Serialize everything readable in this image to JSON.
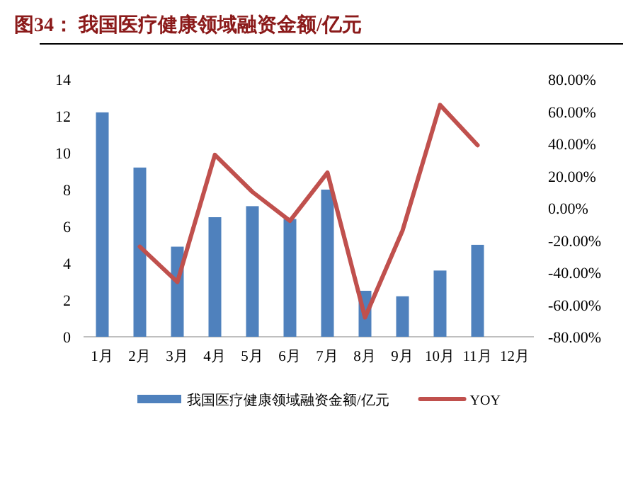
{
  "chart_data": {
    "type": "bar",
    "title": "图34：  我国医疗健康领域融资金额/亿元",
    "categories": [
      "1月",
      "2月",
      "3月",
      "4月",
      "5月",
      "6月",
      "7月",
      "8月",
      "9月",
      "10月",
      "11月",
      "12月"
    ],
    "series": [
      {
        "name": "我国医疗健康领域融资金额/亿元",
        "color": "#4f81bd",
        "values": [
          12.2,
          9.2,
          4.9,
          6.5,
          7.1,
          6.4,
          8.0,
          2.5,
          2.2,
          3.6,
          5.0,
          null
        ]
      },
      {
        "name": "YOY",
        "type": "line",
        "axis": "y2",
        "color": "#c0504d",
        "values": [
          null,
          -24,
          -46,
          33,
          10,
          -8,
          22,
          -68,
          -14,
          64,
          39,
          null
        ]
      }
    ],
    "ylim": [
      0,
      14
    ],
    "yticks": [
      0,
      2,
      4,
      6,
      8,
      10,
      12,
      14
    ],
    "y2lim": [
      -80,
      80
    ],
    "y2ticks": [
      {
        "value": -80,
        "label": "-80.00%"
      },
      {
        "value": -60,
        "label": "-60.00%"
      },
      {
        "value": -40,
        "label": "-40.00%"
      },
      {
        "value": -20,
        "label": "-20.00%"
      },
      {
        "value": 0,
        "label": "0.00%"
      },
      {
        "value": 20,
        "label": "20.00%"
      },
      {
        "value": 40,
        "label": "40.00%"
      },
      {
        "value": 60,
        "label": "60.00%"
      },
      {
        "value": 80,
        "label": "80.00%"
      }
    ],
    "legend": "bottom"
  }
}
